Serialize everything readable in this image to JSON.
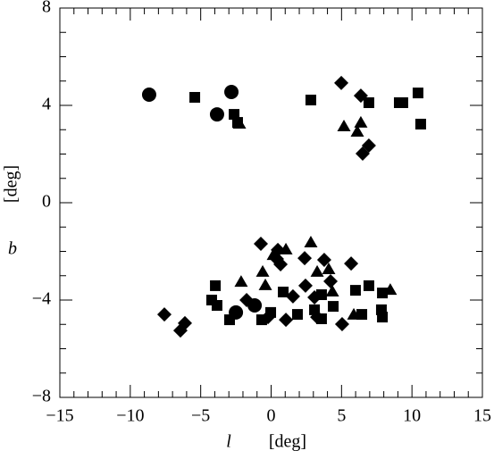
{
  "chart_data": {
    "type": "scatter",
    "x_label": {
      "symbol": "l",
      "unit": "[deg]"
    },
    "y_label": {
      "symbol": "b",
      "unit": "[deg]"
    },
    "xlim": [
      -15,
      15
    ],
    "ylim": [
      -8,
      8
    ],
    "xticks": [
      {
        "value": -15,
        "label": "−15"
      },
      {
        "value": -10,
        "label": "−10"
      },
      {
        "value": -5,
        "label": "−5"
      },
      0,
      5,
      10,
      15
    ],
    "yticks": [
      {
        "value": -8,
        "label": "−8"
      },
      {
        "value": -4,
        "label": "−4"
      },
      0,
      4,
      8
    ],
    "xminorticks": [
      -14,
      -13,
      -12,
      -11,
      -9,
      -8,
      -7,
      -6,
      -4,
      -3,
      -2,
      -1,
      1,
      2,
      3,
      4,
      6,
      7,
      8,
      9,
      11,
      12,
      13,
      14
    ],
    "yminorticks": [
      -7,
      -6,
      -5,
      -3,
      -2,
      -1,
      1,
      2,
      3,
      5,
      6,
      7
    ],
    "mirror_ticks": true,
    "series": [
      {
        "marker": "circle",
        "color": "#000000",
        "x": [
          -8.66,
          -2.82,
          -3.84,
          -2.5,
          -1.17
        ],
        "y": [
          4.44,
          4.55,
          3.63,
          -4.51,
          -4.22
        ]
      },
      {
        "marker": "square",
        "color": "#000000",
        "x": [
          -5.42,
          -2.63,
          -2.38,
          2.82,
          6.94,
          9.1,
          9.35,
          10.43,
          10.62,
          -3.96,
          -4.22,
          -3.84,
          -2.95,
          -0.67,
          -0.03,
          0.86,
          1.87,
          3.08,
          3.58,
          4.41,
          5.99,
          6.44,
          6.94,
          7.9,
          7.83,
          7.9,
          3.58
        ],
        "y": [
          4.33,
          3.63,
          3.3,
          4.22,
          4.11,
          4.11,
          4.11,
          4.51,
          3.23,
          -3.41,
          -4.0,
          -4.22,
          -4.81,
          -4.81,
          -4.51,
          -3.67,
          -4.59,
          -4.4,
          -4.77,
          -4.26,
          -3.6,
          -4.59,
          -3.41,
          -4.7,
          -4.4,
          -3.71,
          -3.78
        ]
      },
      {
        "marker": "triangle",
        "color": "#000000",
        "x": [
          -2.25,
          5.17,
          6.12,
          6.37,
          2.82,
          1.05,
          0.16,
          -0.6,
          -2.13,
          -0.41,
          4.09,
          4.35,
          8.46,
          5.87,
          3.27
        ],
        "y": [
          3.23,
          3.12,
          2.9,
          3.27,
          -1.65,
          -1.94,
          -2.17,
          -2.86,
          -3.27,
          -3.41,
          -2.75,
          -3.67,
          -3.6,
          -4.62,
          -2.86
        ]
      },
      {
        "marker": "diamond",
        "color": "#000000",
        "x": [
          4.98,
          6.37,
          6.94,
          6.5,
          -0.73,
          0.48,
          0.67,
          2.38,
          0.41,
          3.77,
          5.68,
          2.44,
          4.22,
          3.08,
          1.55,
          -1.74,
          -0.22,
          1.05,
          3.27,
          5.04,
          -7.58,
          -6.12,
          -6.44
        ],
        "y": [
          4.92,
          4.4,
          2.35,
          2.02,
          -1.69,
          -1.94,
          -2.53,
          -2.28,
          -2.31,
          -2.35,
          -2.5,
          -3.41,
          -3.23,
          -3.89,
          -3.85,
          -4.0,
          -4.7,
          -4.81,
          -4.7,
          -4.99,
          -4.59,
          -4.95,
          -5.25
        ]
      }
    ]
  }
}
